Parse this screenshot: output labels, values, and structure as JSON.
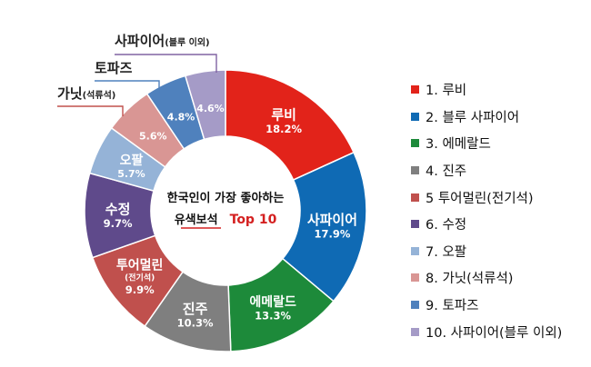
{
  "chart_data": {
    "type": "pie",
    "title_line1": "한국인이 가장 좋아하는",
    "title_line2_a": "유색보석",
    "title_line2_b": "Top 10",
    "series": [
      {
        "name": "루비",
        "value": 18.2,
        "value_label": "18.2%",
        "color": "#e2231a",
        "legend": "1. 루비"
      },
      {
        "name": "사파이어",
        "value": 17.9,
        "value_label": "17.9%",
        "color": "#0f6ab4",
        "legend": "2. 블루 사파이어"
      },
      {
        "name": "에메랄드",
        "value": 13.3,
        "value_label": "13.3%",
        "color": "#1d8a3a",
        "legend": "3. 에메랄드"
      },
      {
        "name": "진주",
        "value": 10.3,
        "value_label": "10.3%",
        "color": "#7f7f7f",
        "legend": "4. 진주"
      },
      {
        "name": "투어멀린",
        "sub": "(전기석)",
        "value": 9.9,
        "value_label": "9.9%",
        "color": "#c0504d",
        "legend": "5 투어멀린(전기석)"
      },
      {
        "name": "수정",
        "value": 9.7,
        "value_label": "9.7%",
        "color": "#5f4a8b",
        "legend": "6. 수정"
      },
      {
        "name": "오팔",
        "value": 5.7,
        "value_label": "5.7%",
        "color": "#95b3d7",
        "legend": "7. 오팔"
      },
      {
        "name": "",
        "value": 5.6,
        "value_label": "5.6%",
        "color": "#d99694",
        "legend": "8. 가닛(석류석)"
      },
      {
        "name": "",
        "value": 4.8,
        "value_label": "4.8%",
        "color": "#4f81bd",
        "legend": "9. 토파즈"
      },
      {
        "name": "",
        "value": 4.6,
        "value_label": "4.6%",
        "color": "#a59bc7",
        "legend": "10. 사파이어(블루 이외)"
      }
    ],
    "callouts": [
      {
        "text": "사파이어",
        "small": "(블루 이외)",
        "line_color": "#8064a2"
      },
      {
        "text": "토파즈",
        "small": "",
        "line_color": "#4f81bd"
      },
      {
        "text": "가닛",
        "small": "(석류석)",
        "line_color": "#c0504d"
      }
    ],
    "legend_position": "right"
  }
}
